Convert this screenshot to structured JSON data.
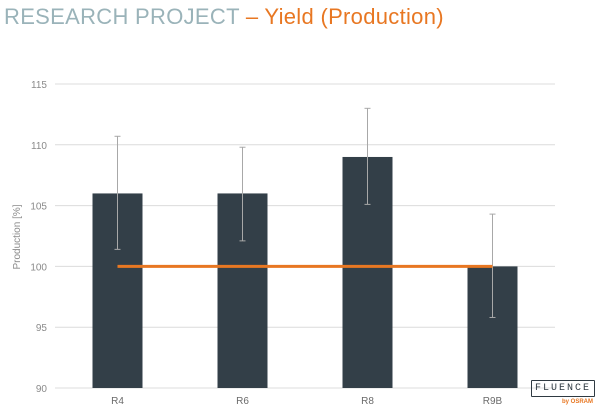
{
  "title": {
    "main": "RESEARCH PROJECT",
    "dash": "–",
    "sub": "Yield (Production)"
  },
  "colors": {
    "bar": "#333f48",
    "reference_line": "#e87722",
    "title_main": "#9ab3b9",
    "accent": "#e87722",
    "grid": "#dcdcdc",
    "error_bar": "#a8a8a8"
  },
  "logo": {
    "text": "FLUENCE",
    "subtext": "by OSRAM"
  },
  "chart_data": {
    "type": "bar",
    "categories": [
      "R4",
      "R6",
      "R8",
      "R9B"
    ],
    "values": [
      106,
      106,
      109,
      100
    ],
    "error_low": [
      101.4,
      102.1,
      105.1,
      95.8
    ],
    "error_high": [
      110.7,
      109.8,
      113.0,
      104.3
    ],
    "reference_line": {
      "value": 100
    },
    "ylabel": "Production [%]",
    "xlabel": "",
    "ylim": [
      90,
      115
    ],
    "yticks": [
      90,
      95,
      100,
      105,
      110,
      115
    ],
    "grid": true,
    "legend": "none"
  }
}
